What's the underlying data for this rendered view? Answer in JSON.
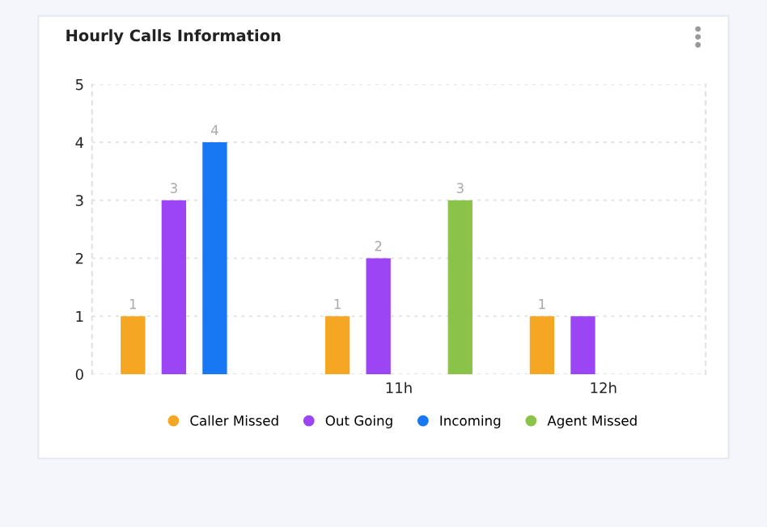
{
  "chart_data": {
    "type": "bar",
    "title": "Hourly Calls Information",
    "categories": [
      null,
      "11h",
      "12h"
    ],
    "series": [
      {
        "name": "Caller Missed",
        "color": "#f5a623",
        "values": [
          1,
          1,
          1
        ],
        "value_labels": [
          "1",
          "1",
          "1"
        ]
      },
      {
        "name": "Out Going",
        "color": "#9b45f5",
        "values": [
          3,
          2,
          1
        ],
        "value_labels": [
          "3",
          "2",
          null
        ]
      },
      {
        "name": "Incoming",
        "color": "#1877f2",
        "values": [
          4,
          null,
          null
        ],
        "value_labels": [
          "4",
          null,
          null
        ]
      },
      {
        "name": "Agent Missed",
        "color": "#8bc34a",
        "values": [
          null,
          3,
          null
        ],
        "value_labels": [
          null,
          "3",
          null
        ]
      }
    ],
    "ylim": [
      0,
      5
    ],
    "yticks": [
      0,
      1,
      2,
      3,
      4,
      5
    ],
    "grid": "y",
    "legend": "bottom"
  }
}
